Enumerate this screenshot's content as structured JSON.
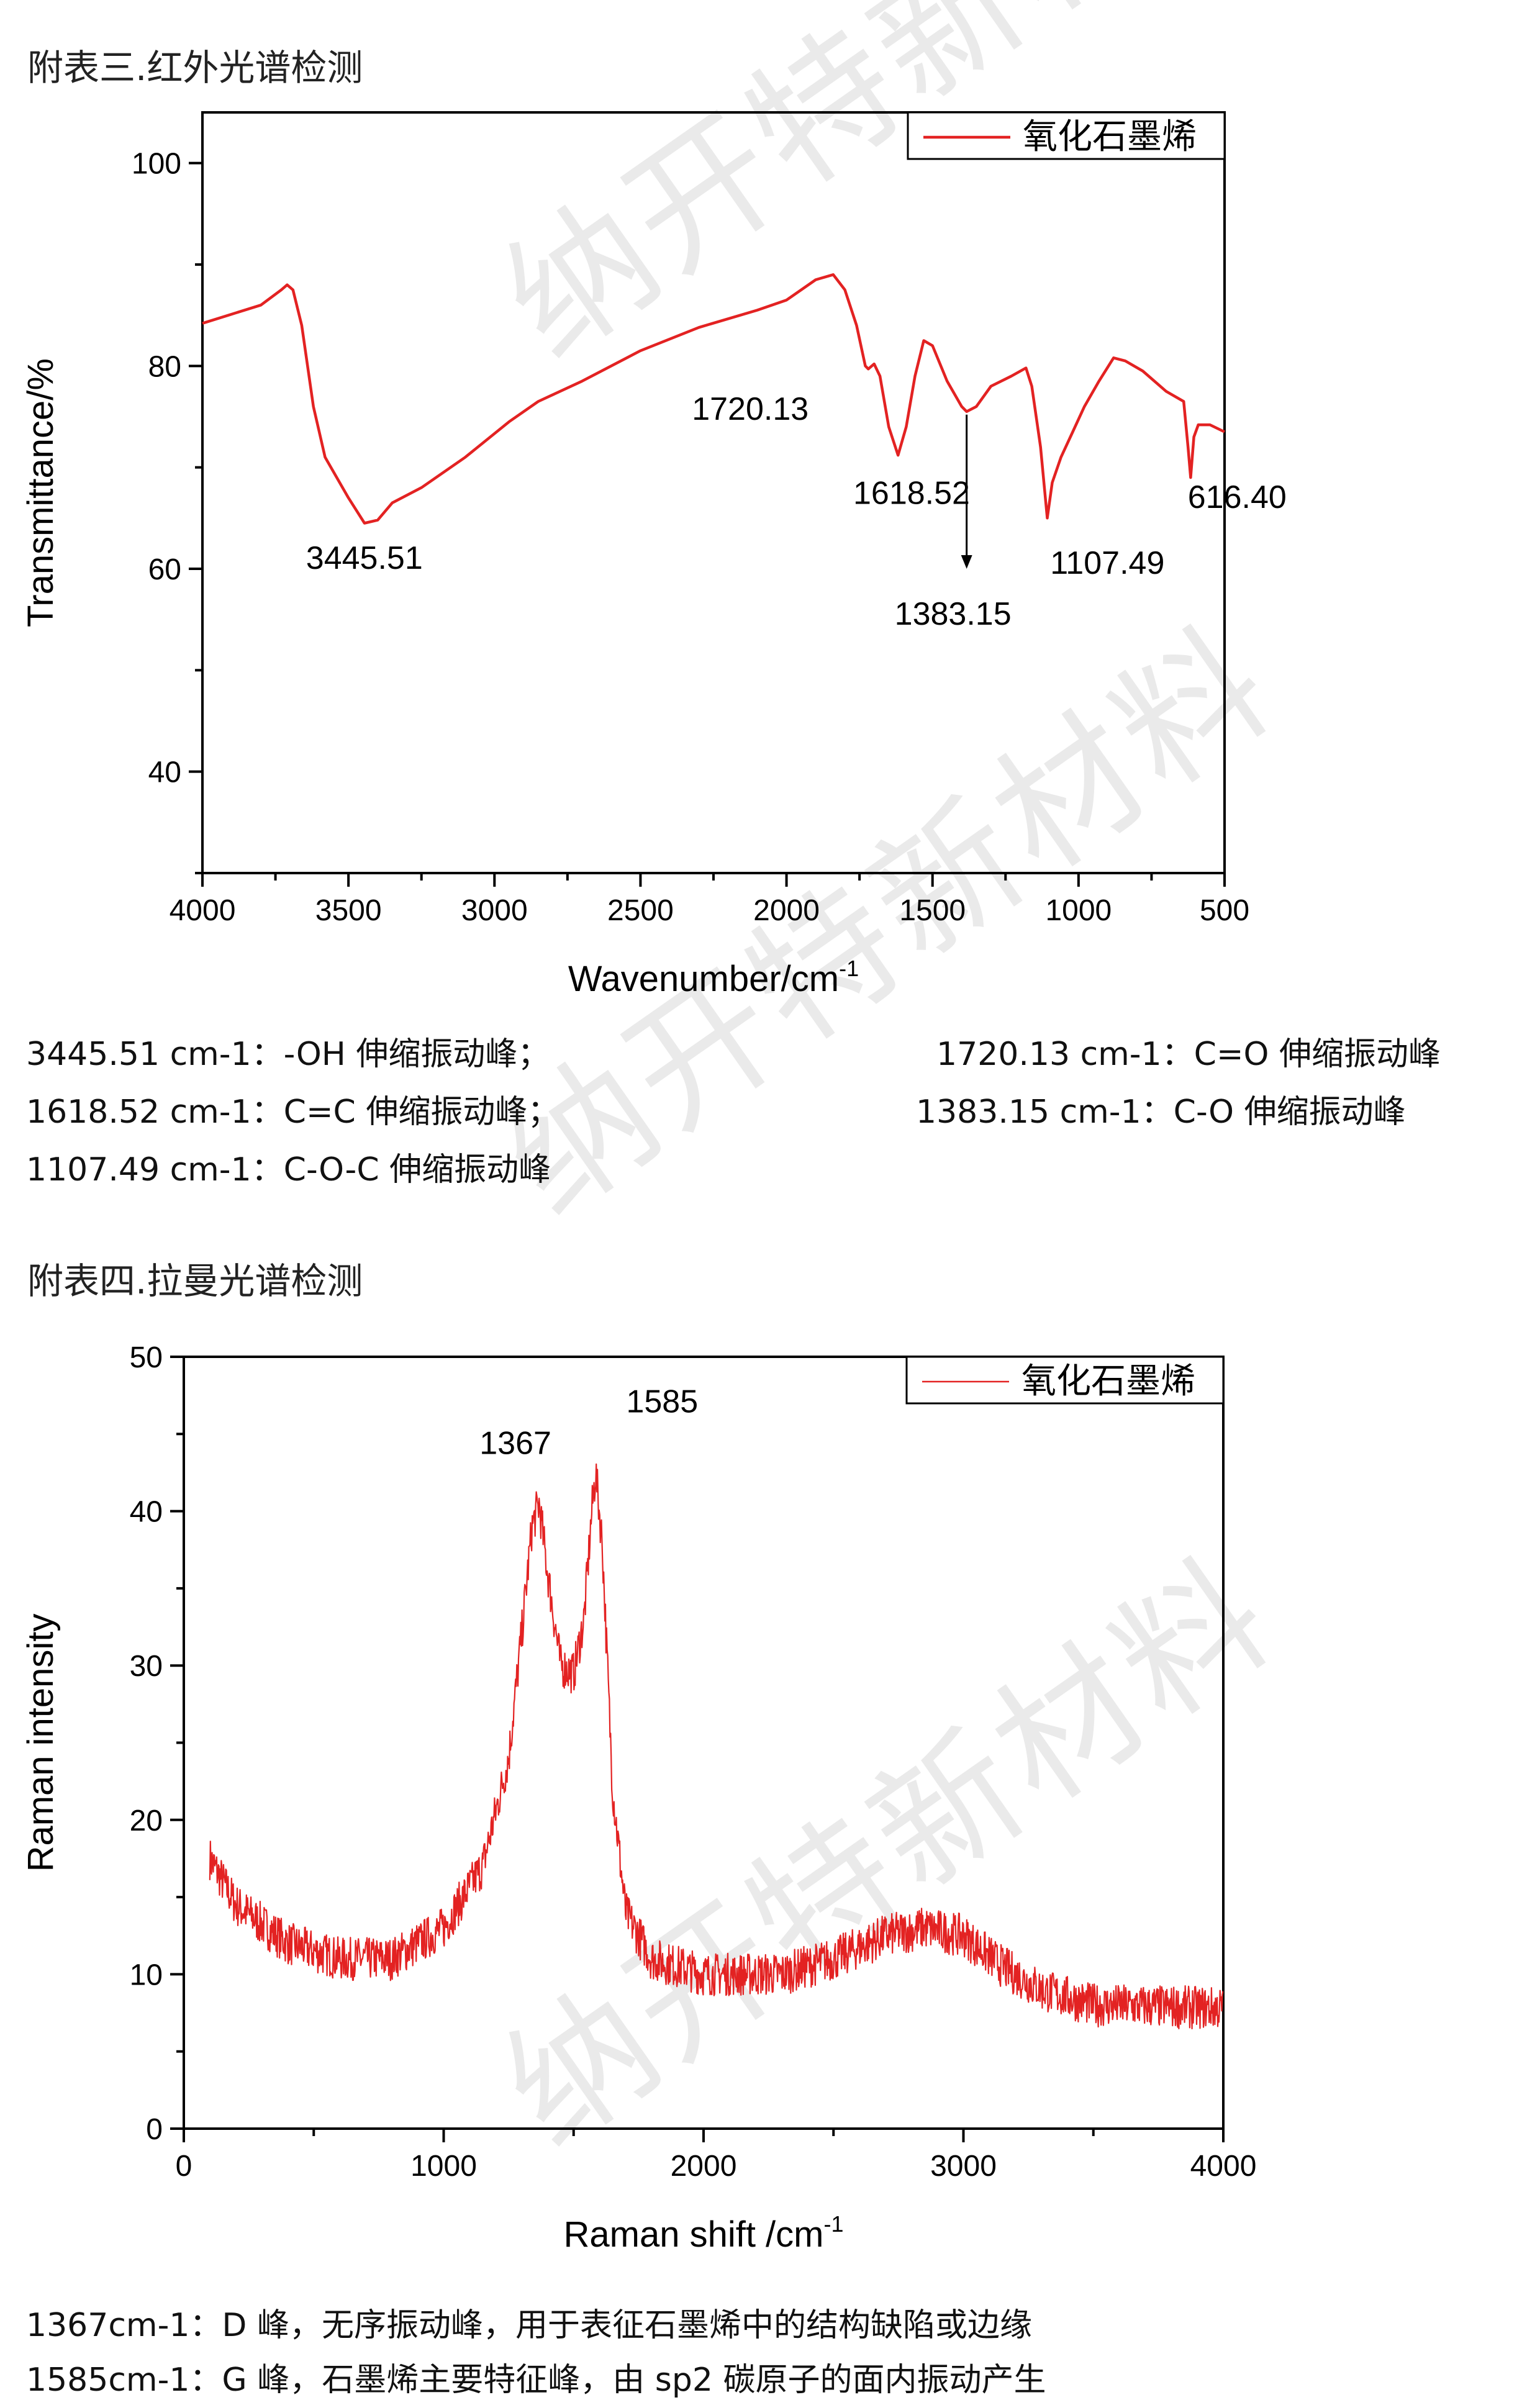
{
  "watermark": "纳开特新材料",
  "sections": {
    "ir_title": "附表三.红外光谱检测",
    "raman_title": "附表四.拉曼光谱检测"
  },
  "ir_notes": [
    "3445.51 cm-1：-OH 伸缩振动峰；",
    "1720.13 cm-1：C=O 伸缩振动峰",
    "1618.52 cm-1：C=C 伸缩振动峰；",
    "1383.15 cm-1：C-O 伸缩振动峰",
    "1107.49 cm-1：C-O-C 伸缩振动峰"
  ],
  "raman_notes": [
    "1367cm-1：D 峰，无序振动峰，用于表征石墨烯中的结构缺陷或边缘",
    "1585cm-1：G 峰，石墨烯主要特征峰，由 sp2 碳原子的面内振动产生"
  ],
  "chart_data": [
    {
      "type": "line",
      "title": "",
      "xlabel": "Wavenumber/cm",
      "xlabel_sup": "-1",
      "ylabel": "Transmittance/%",
      "xlim": [
        4000,
        500
      ],
      "ylim": [
        30,
        105
      ],
      "xticks": [
        4000,
        3500,
        3000,
        2500,
        2000,
        1500,
        1000,
        500
      ],
      "yticks": [
        40,
        60,
        80,
        100
      ],
      "legend": {
        "label": "氧化石墨烯",
        "position": "top-right"
      },
      "color": "#e32222",
      "series": [
        {
          "name": "氧化石墨烯",
          "x": [
            4000,
            3800,
            3730,
            3710,
            3690,
            3660,
            3620,
            3580,
            3500,
            3445,
            3400,
            3350,
            3250,
            3100,
            2950,
            2850,
            2700,
            2500,
            2300,
            2100,
            2000,
            1900,
            1840,
            1800,
            1760,
            1730,
            1720,
            1700,
            1680,
            1650,
            1618,
            1590,
            1560,
            1530,
            1500,
            1450,
            1400,
            1383,
            1350,
            1300,
            1230,
            1180,
            1160,
            1130,
            1107,
            1090,
            1060,
            1020,
            980,
            930,
            880,
            840,
            780,
            700,
            640,
            625,
            616,
            605,
            590,
            550,
            500
          ],
          "y": [
            84.2,
            86,
            87.5,
            88,
            87.5,
            84,
            76,
            71,
            67,
            64.5,
            64.8,
            66.5,
            68,
            71,
            74.5,
            76.5,
            78.5,
            81.5,
            83.8,
            85.5,
            86.5,
            88.5,
            89,
            87.5,
            84,
            80,
            79.7,
            80.2,
            79,
            74,
            71.2,
            74,
            79,
            82.5,
            82,
            78.5,
            76,
            75.5,
            76,
            78,
            79,
            79.8,
            78,
            72,
            65,
            68.5,
            71,
            73.5,
            76,
            78.5,
            80.8,
            80.5,
            79.5,
            77.5,
            76.5,
            72,
            69,
            73,
            74.2,
            74.2,
            73.5
          ]
        }
      ],
      "annotations": [
        {
          "text": "3445.51",
          "x": 3445.51
        },
        {
          "text": "1720.13",
          "x": 1720.13
        },
        {
          "text": "1618.52",
          "x": 1618.52
        },
        {
          "text": "1383.15",
          "x": 1383.15,
          "arrow": true
        },
        {
          "text": "1107.49",
          "x": 1107.49
        },
        {
          "text": "616.40",
          "x": 616.4
        }
      ]
    },
    {
      "type": "line",
      "title": "",
      "xlabel": "Raman shift /cm",
      "xlabel_sup": "-1",
      "ylabel": "Raman intensity",
      "xlim": [
        0,
        4000
      ],
      "ylim": [
        0,
        50
      ],
      "xticks": [
        0,
        1000,
        2000,
        3000,
        4000
      ],
      "yticks": [
        0,
        10,
        20,
        30,
        40,
        50
      ],
      "legend": {
        "label": "氧化石墨烯",
        "position": "top-right"
      },
      "color": "#e32222",
      "series": [
        {
          "name": "氧化石墨烯",
          "x": [
            100,
            200,
            400,
            600,
            800,
            1000,
            1150,
            1250,
            1300,
            1340,
            1367,
            1400,
            1450,
            1500,
            1540,
            1570,
            1585,
            1610,
            1650,
            1700,
            1800,
            2000,
            2300,
            2500,
            2700,
            2850,
            3000,
            3150,
            3300,
            3500,
            4000
          ],
          "y": [
            17.5,
            14.5,
            12,
            11,
            11,
            13,
            17,
            24,
            32,
            39,
            40.5,
            36,
            30,
            29.5,
            33,
            40,
            42.5,
            38,
            22,
            14,
            11,
            10,
            10,
            11,
            12.5,
            13,
            12.5,
            10.5,
            9,
            8,
            7.8
          ]
        }
      ],
      "annotations": [
        {
          "text": "1367",
          "x": 1367
        },
        {
          "text": "1585",
          "x": 1585
        }
      ]
    }
  ]
}
